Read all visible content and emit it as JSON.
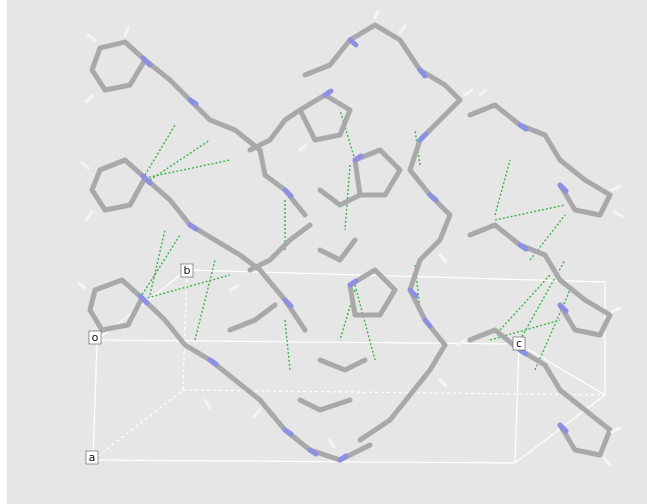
{
  "axis_labels": {
    "origin": "o",
    "a": "a",
    "b": "b",
    "c": "c"
  }
}
